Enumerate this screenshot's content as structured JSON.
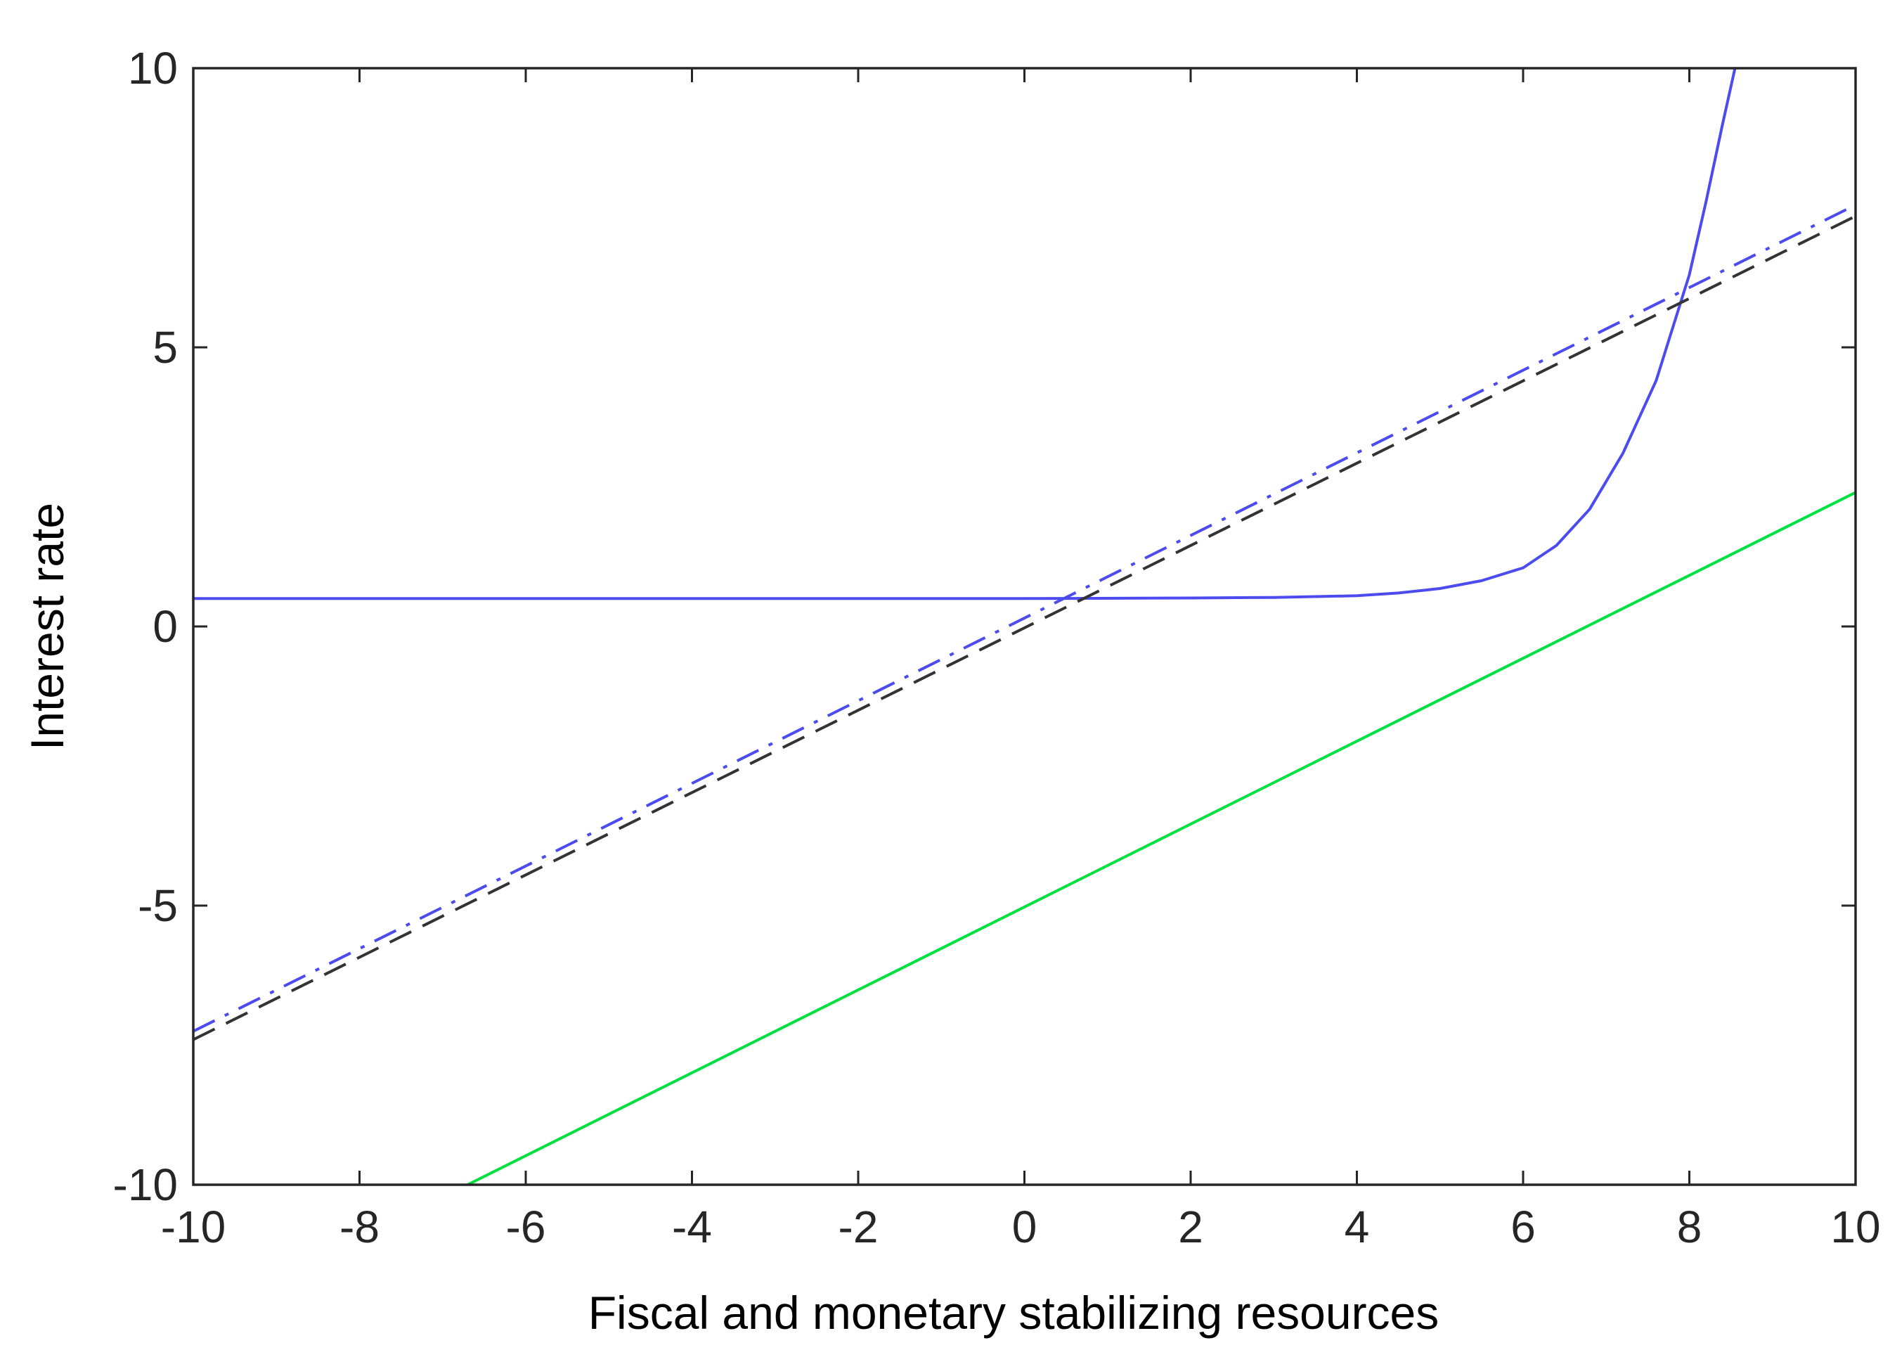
{
  "chart_data": {
    "type": "line",
    "title": "",
    "xlabel": "Fiscal and monetary stabilizing resources",
    "ylabel": "Interest rate",
    "xlim": [
      -10,
      10
    ],
    "ylim": [
      -10,
      10
    ],
    "xticks": [
      -10,
      -8,
      -6,
      -4,
      -2,
      0,
      2,
      4,
      6,
      8,
      10
    ],
    "yticks": [
      -10,
      -5,
      0,
      5,
      10
    ],
    "xtick_labels": [
      "-10",
      "-8",
      "-6",
      "-4",
      "-2",
      "0",
      "2",
      "4",
      "6",
      "8",
      "10"
    ],
    "ytick_labels": [
      "-10",
      "-5",
      "0",
      "5",
      "10"
    ],
    "grid": false,
    "legend": "none",
    "series": [
      {
        "style": "solid",
        "color": "#4b4bf0",
        "x": [
          -10,
          -6,
          -2,
          0,
          2,
          3,
          4,
          4.5,
          5,
          5.5,
          6,
          6.4,
          6.8,
          7.2,
          7.6,
          8,
          8.2,
          8.4,
          8.55
        ],
        "y": [
          0.5,
          0.5,
          0.5,
          0.5,
          0.51,
          0.52,
          0.55,
          0.6,
          0.68,
          0.82,
          1.05,
          1.45,
          2.1,
          3.1,
          4.4,
          6.3,
          7.6,
          9.0,
          10
        ]
      },
      {
        "style": "dash-dot",
        "color": "#4b4bf0",
        "x": [
          -10,
          10
        ],
        "y": [
          -7.25,
          7.55
        ]
      },
      {
        "style": "dashed",
        "color": "#333333",
        "x": [
          -10,
          10
        ],
        "y": [
          -7.4,
          7.35
        ]
      },
      {
        "style": "solid",
        "color": "#00e040",
        "x": [
          -6.7,
          10
        ],
        "y": [
          -10,
          2.4
        ]
      }
    ]
  }
}
